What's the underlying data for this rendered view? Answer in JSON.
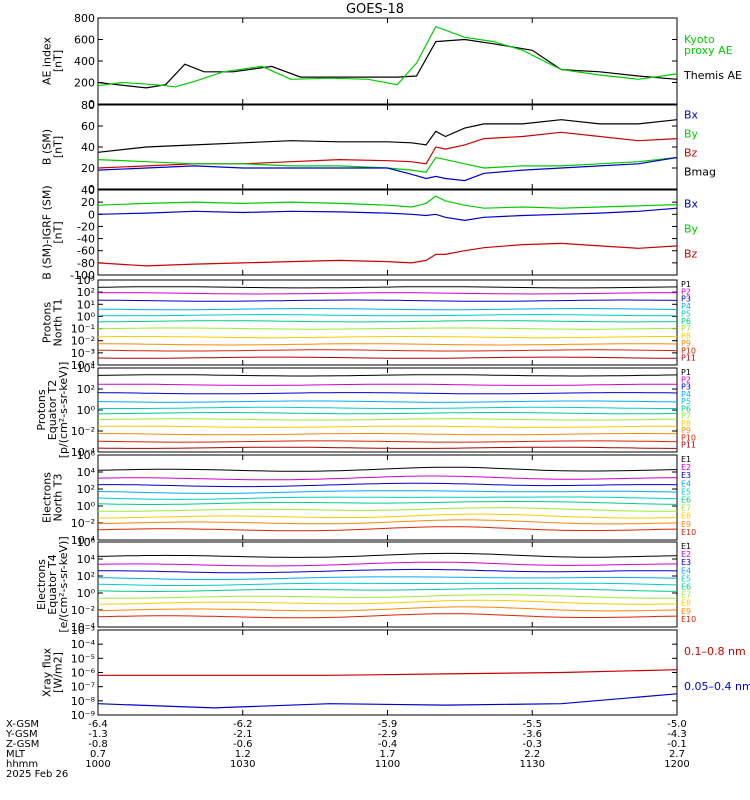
{
  "title": "GOES-18",
  "colors": {
    "black": "#000000",
    "green": "#00cc00",
    "blue": "#0000cc",
    "red": "#cc0000"
  },
  "panels": [
    {
      "ylabel": [
        "AE index",
        "[nT]"
      ],
      "ticks": [
        {
          "v": 800,
          "t": "800"
        },
        {
          "v": 600,
          "t": "600"
        },
        {
          "v": 400,
          "t": "400"
        },
        {
          "v": 200,
          "t": "200"
        },
        {
          "v": 0,
          "t": "0"
        }
      ],
      "legend": [
        {
          "lines": [
            "Kyoto",
            "proxy AE"
          ],
          "color": "#00cc00"
        },
        {
          "lines": [
            "Themis AE"
          ],
          "color": "#000000"
        }
      ]
    },
    {
      "ylabel": [
        "B (SM)",
        "[nT]"
      ],
      "ticks": [
        {
          "v": 80,
          "t": "80"
        },
        {
          "v": 60,
          "t": "60"
        },
        {
          "v": 40,
          "t": "40"
        },
        {
          "v": 20,
          "t": "20"
        },
        {
          "v": 0,
          "t": "0"
        }
      ],
      "legend": [
        {
          "lines": [
            "Bx"
          ],
          "color": "#0000cc"
        },
        {
          "lines": [
            "By"
          ],
          "color": "#00cc00"
        },
        {
          "lines": [
            "Bz"
          ],
          "color": "#cc0000"
        },
        {
          "lines": [
            "Bmag"
          ],
          "color": "#000000"
        }
      ]
    },
    {
      "ylabel": [
        "B (SM)-IGRF (SM)",
        "[nT]"
      ],
      "ticks": [
        {
          "v": 40,
          "t": "40"
        },
        {
          "v": 20,
          "t": "20"
        },
        {
          "v": 0,
          "t": "0"
        },
        {
          "v": -20,
          "t": "-20"
        },
        {
          "v": -40,
          "t": "-40"
        },
        {
          "v": -60,
          "t": "-60"
        },
        {
          "v": -80,
          "t": "-80"
        },
        {
          "v": -100,
          "t": "-100"
        }
      ],
      "legend": [
        {
          "lines": [
            "Bx"
          ],
          "color": "#0000cc"
        },
        {
          "lines": [
            "By"
          ],
          "color": "#00cc00"
        },
        {
          "lines": [
            "Bz"
          ],
          "color": "#cc0000"
        }
      ]
    },
    {
      "ylabel": [
        "Protons",
        "North T1"
      ],
      "ticks": [
        {
          "v": 3,
          "t": "10³"
        },
        {
          "v": 2,
          "t": "10²"
        },
        {
          "v": 1,
          "t": "10¹"
        },
        {
          "v": 0,
          "t": "10⁰"
        },
        {
          "v": -1,
          "t": "10⁻¹"
        },
        {
          "v": -2,
          "t": "10⁻²"
        },
        {
          "v": -3,
          "t": "10⁻³"
        },
        {
          "v": -4,
          "t": "10⁻⁴"
        }
      ],
      "channels": [
        "P1",
        "P2",
        "P3",
        "P4",
        "P5",
        "P6",
        "P7",
        "P8",
        "P9",
        "P10",
        "P11"
      ]
    },
    {
      "ylabel": [
        "Protons",
        "Equator T2",
        "[p/(cm²-s-sr-keV)]"
      ],
      "ticks": [
        {
          "v": 4,
          "t": "10⁴"
        },
        {
          "v": 2,
          "t": "10²"
        },
        {
          "v": 0,
          "t": "10⁰"
        },
        {
          "v": -2,
          "t": "10⁻²"
        },
        {
          "v": -4,
          "t": "10⁻⁴"
        }
      ],
      "channels": [
        "P1",
        "P2",
        "P3",
        "P4",
        "P5",
        "P6",
        "P7",
        "P8",
        "P9",
        "P10",
        "P11"
      ]
    },
    {
      "ylabel": [
        "Electrons",
        "North T3"
      ],
      "ticks": [
        {
          "v": 6,
          "t": "10⁶"
        },
        {
          "v": 4,
          "t": "10⁴"
        },
        {
          "v": 2,
          "t": "10²"
        },
        {
          "v": 0,
          "t": "10⁰"
        },
        {
          "v": -2,
          "t": "10⁻²"
        },
        {
          "v": -4,
          "t": "10⁻⁴"
        }
      ],
      "channels": [
        "E1",
        "E2",
        "E3",
        "E4",
        "E5",
        "E6",
        "E7",
        "E8",
        "E9",
        "E10"
      ]
    },
    {
      "ylabel": [
        "Electrons",
        "Equator T4",
        "[e/(cm²-s-sr-keV)]"
      ],
      "ticks": [
        {
          "v": 6,
          "t": "10⁶"
        },
        {
          "v": 4,
          "t": "10⁴"
        },
        {
          "v": 2,
          "t": "10²"
        },
        {
          "v": 0,
          "t": "10⁰"
        },
        {
          "v": -2,
          "t": "10⁻²"
        },
        {
          "v": -4,
          "t": "10⁻⁴"
        }
      ],
      "channels": [
        "E1",
        "E2",
        "E3",
        "E4",
        "E5",
        "E6",
        "E7",
        "E8",
        "E9",
        "E10"
      ]
    },
    {
      "ylabel": [
        "Xray flux",
        "[W/m2]"
      ],
      "ticks": [
        {
          "v": -3,
          "t": "10⁻³"
        },
        {
          "v": -4,
          "t": "10⁻⁴"
        },
        {
          "v": -5,
          "t": "10⁻⁵"
        },
        {
          "v": -6,
          "t": "10⁻⁶"
        },
        {
          "v": -7,
          "t": "10⁻⁷"
        },
        {
          "v": -8,
          "t": "10⁻⁸"
        },
        {
          "v": -9,
          "t": "10⁻⁹"
        }
      ],
      "legend": [
        {
          "lines": [
            "0.1–0.8 nm"
          ],
          "color": "#cc0000"
        },
        {
          "lines": [
            "0.05–0.4 nm"
          ],
          "color": "#0000cc"
        }
      ]
    }
  ],
  "xaxis": {
    "rows": [
      {
        "label": "X-GSM",
        "values": [
          "-6.4",
          "-6.2",
          "-5.9",
          "-5.5",
          "-5.0"
        ]
      },
      {
        "label": "Y-GSM",
        "values": [
          "-1.3",
          "-2.1",
          "-2.9",
          "-3.6",
          "-4.3"
        ]
      },
      {
        "label": "Z-GSM",
        "values": [
          "-0.8",
          "-0.6",
          "-0.4",
          "-0.3",
          "-0.1"
        ]
      },
      {
        "label": "MLT",
        "values": [
          "0.7",
          "1.2",
          "1.7",
          "2.2",
          "2.7"
        ]
      },
      {
        "label": "hhmm",
        "values": [
          "1000",
          "1030",
          "1100",
          "1130",
          "1200"
        ]
      }
    ],
    "date": "2025 Feb 26"
  },
  "chart_data": {
    "type": "line",
    "title": "GOES-18",
    "time_range": [
      "1000",
      "1200"
    ],
    "series": [
      {
        "panel": 0,
        "name": "Themis AE",
        "color": "#000000",
        "x": [
          0,
          10,
          14,
          18,
          22,
          28,
          36,
          42,
          50,
          56,
          62,
          66,
          70,
          76,
          82,
          90,
          96,
          104,
          112,
          120
        ],
        "y": [
          200,
          150,
          180,
          370,
          300,
          300,
          350,
          250,
          250,
          250,
          250,
          260,
          580,
          600,
          560,
          500,
          320,
          300,
          260,
          230
        ]
      },
      {
        "panel": 0,
        "name": "Kyoto proxy AE",
        "color": "#00cc00",
        "x": [
          0,
          5,
          12,
          16,
          20,
          26,
          34,
          40,
          48,
          56,
          62,
          66,
          70,
          76,
          82,
          88,
          96,
          104,
          112,
          120
        ],
        "y": [
          170,
          200,
          180,
          160,
          210,
          300,
          350,
          230,
          240,
          230,
          180,
          380,
          720,
          620,
          580,
          500,
          320,
          270,
          230,
          280
        ]
      },
      {
        "panel": 1,
        "name": "Bmag",
        "color": "#000000",
        "x": [
          0,
          10,
          20,
          30,
          40,
          50,
          60,
          65,
          68,
          70,
          72,
          76,
          80,
          88,
          96,
          104,
          112,
          120
        ],
        "y": [
          35,
          40,
          42,
          44,
          46,
          45,
          45,
          44,
          42,
          55,
          50,
          58,
          62,
          62,
          66,
          62,
          62,
          66
        ]
      },
      {
        "panel": 1,
        "name": "Bz",
        "color": "#cc0000",
        "x": [
          0,
          10,
          20,
          30,
          40,
          50,
          60,
          65,
          68,
          70,
          72,
          76,
          80,
          88,
          96,
          104,
          112,
          120
        ],
        "y": [
          20,
          22,
          24,
          24,
          26,
          28,
          27,
          26,
          24,
          40,
          38,
          42,
          48,
          50,
          54,
          50,
          46,
          48
        ]
      },
      {
        "panel": 1,
        "name": "By",
        "color": "#00cc00",
        "x": [
          0,
          10,
          20,
          30,
          40,
          50,
          60,
          65,
          68,
          70,
          72,
          76,
          80,
          88,
          96,
          104,
          112,
          120
        ],
        "y": [
          28,
          26,
          24,
          24,
          22,
          22,
          20,
          18,
          16,
          30,
          28,
          24,
          20,
          22,
          22,
          24,
          26,
          30
        ]
      },
      {
        "panel": 1,
        "name": "Bx",
        "color": "#0000cc",
        "x": [
          0,
          10,
          20,
          30,
          40,
          50,
          60,
          65,
          68,
          70,
          72,
          76,
          80,
          88,
          96,
          104,
          112,
          120
        ],
        "y": [
          18,
          20,
          22,
          20,
          20,
          20,
          20,
          14,
          10,
          12,
          10,
          8,
          15,
          18,
          20,
          22,
          24,
          30
        ]
      },
      {
        "panel": 2,
        "name": "By",
        "color": "#00cc00",
        "x": [
          0,
          10,
          20,
          30,
          40,
          50,
          60,
          65,
          68,
          70,
          72,
          76,
          80,
          88,
          96,
          104,
          112,
          120
        ],
        "y": [
          15,
          18,
          20,
          18,
          20,
          18,
          15,
          12,
          18,
          30,
          22,
          15,
          10,
          12,
          10,
          12,
          14,
          16
        ]
      },
      {
        "panel": 2,
        "name": "Bx",
        "color": "#0000cc",
        "x": [
          0,
          10,
          20,
          30,
          40,
          50,
          60,
          65,
          68,
          70,
          72,
          76,
          80,
          88,
          96,
          104,
          112,
          120
        ],
        "y": [
          0,
          2,
          5,
          3,
          5,
          4,
          2,
          0,
          -2,
          0,
          -5,
          -10,
          -5,
          -2,
          0,
          2,
          5,
          10
        ]
      },
      {
        "panel": 2,
        "name": "Bz",
        "color": "#cc0000",
        "x": [
          0,
          10,
          20,
          30,
          40,
          50,
          60,
          65,
          68,
          70,
          72,
          76,
          80,
          88,
          96,
          104,
          112,
          120
        ],
        "y": [
          -80,
          -85,
          -82,
          -80,
          -78,
          -76,
          -78,
          -80,
          -76,
          -66,
          -66,
          -60,
          -55,
          -50,
          -48,
          -52,
          -56,
          -52
        ]
      }
    ],
    "flux_channels": {
      "proton_north_log": [
        2.4,
        1.9,
        1.3,
        0.6,
        0.1,
        -0.4,
        -1.0,
        -1.7,
        -2.3,
        -2.8,
        -3.4
      ],
      "proton_equator_log": [
        3.3,
        2.4,
        1.6,
        0.8,
        0.2,
        -0.3,
        -0.9,
        -1.6,
        -2.3,
        -3.0,
        -3.6
      ],
      "electron_north_log": [
        4.2,
        3.2,
        2.4,
        1.6,
        0.9,
        0.3,
        -0.5,
        -1.3,
        -2.0,
        -2.8
      ],
      "electron_equator_log": [
        4.3,
        3.3,
        2.5,
        1.7,
        1.0,
        0.3,
        -0.5,
        -1.2,
        -2.0,
        -2.8
      ],
      "xray_long_log": [
        -6.2,
        -6.2,
        -6.2,
        -6.1,
        -6.0,
        -5.8
      ],
      "xray_short_log": [
        -8.2,
        -8.5,
        -8.2,
        -8.3,
        -8.2,
        -7.5
      ]
    }
  }
}
